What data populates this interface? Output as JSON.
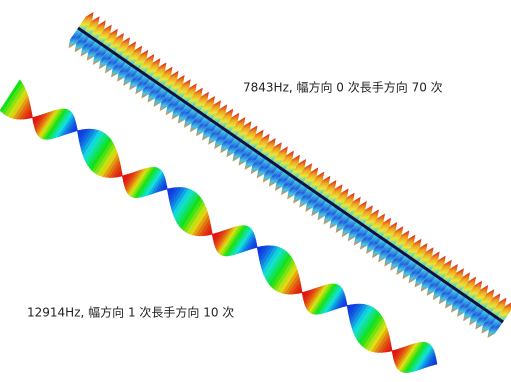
{
  "labels": [
    "7843Hz, 幅方向 0 次長手方向 70 次",
    "12914Hz, 幅方向 1 次長手方向 10 次"
  ]
}
